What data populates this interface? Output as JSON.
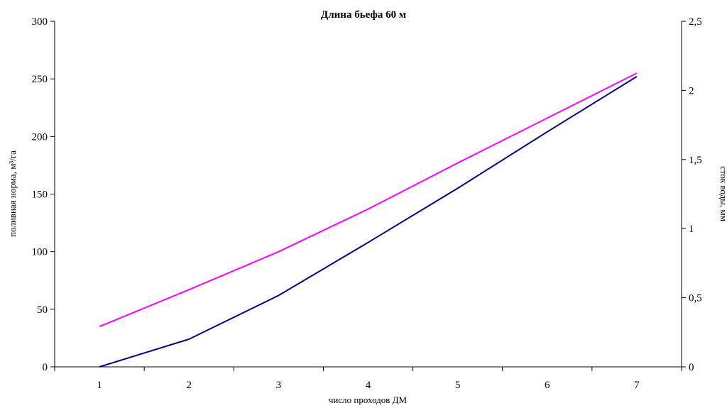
{
  "chart_data": {
    "type": "line",
    "title": "Длина бьефа 60 м",
    "xlabel": "число проходов ДМ",
    "ylabel_left": "поливная норма, м³/га",
    "ylabel_right": "сток воды, мм",
    "x": [
      1,
      2,
      3,
      4,
      5,
      6,
      7
    ],
    "x_ticks": [
      "1",
      "2",
      "3",
      "4",
      "5",
      "6",
      "7"
    ],
    "y_left_lim": [
      0,
      300
    ],
    "y_left_ticks": [
      "0",
      "50",
      "100",
      "150",
      "200",
      "250",
      "300"
    ],
    "y_right_lim": [
      0,
      2.5
    ],
    "y_right_ticks": [
      "0",
      "0,5",
      "1",
      "1,5",
      "2",
      "2,5"
    ],
    "grid": false,
    "legend": "none",
    "series": [
      {
        "axis": "left",
        "color": "#ff00ff",
        "values": [
          35,
          67,
          100,
          137,
          177,
          216,
          255
        ]
      },
      {
        "axis": "left",
        "color": "#000080",
        "values": [
          0,
          24,
          62,
          108,
          155,
          204,
          252
        ]
      }
    ]
  }
}
